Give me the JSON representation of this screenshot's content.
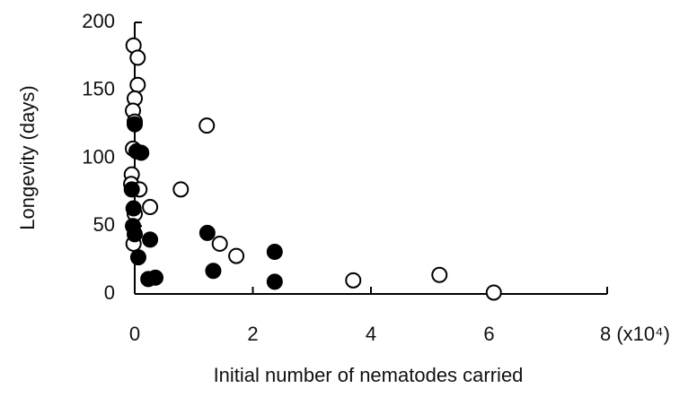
{
  "chart_data": {
    "type": "scatter",
    "x_label": "Initial number of nematodes carried",
    "y_label": "Longevity (days)",
    "xlim": [
      0,
      8
    ],
    "ylim": [
      0,
      200
    ],
    "xticks": [
      0,
      2,
      4,
      6,
      {
        "value": 8,
        "label": "8 (x10⁴)"
      }
    ],
    "yticks": [
      0,
      50,
      100,
      150,
      200
    ],
    "series": [
      {
        "color": "#000000",
        "filled": false,
        "x": [
          -0.02,
          0.05,
          0.05,
          0,
          -0.03,
          0,
          -0.03,
          -0.05,
          -0.06,
          0.08,
          0.26,
          0.78,
          1.22,
          1.44,
          1.72,
          3.7,
          5.16,
          6.08,
          0,
          -0.02
        ],
        "values": [
          183,
          174,
          154,
          144,
          135,
          127,
          107,
          88,
          81,
          77,
          64,
          77,
          124,
          37,
          28,
          10,
          14,
          1,
          59,
          37
        ]
      },
      {
        "color": "#000000",
        "filled": true,
        "x": [
          0,
          0.03,
          0.11,
          -0.05,
          -0.02,
          -0.03,
          0,
          0.06,
          0.26,
          0.23,
          0.35,
          1.23,
          1.33,
          2.37,
          2.37
        ],
        "values": [
          125,
          105,
          104,
          77,
          63,
          50,
          44,
          27,
          40,
          11,
          12,
          45,
          17,
          31,
          9
        ]
      }
    ]
  }
}
